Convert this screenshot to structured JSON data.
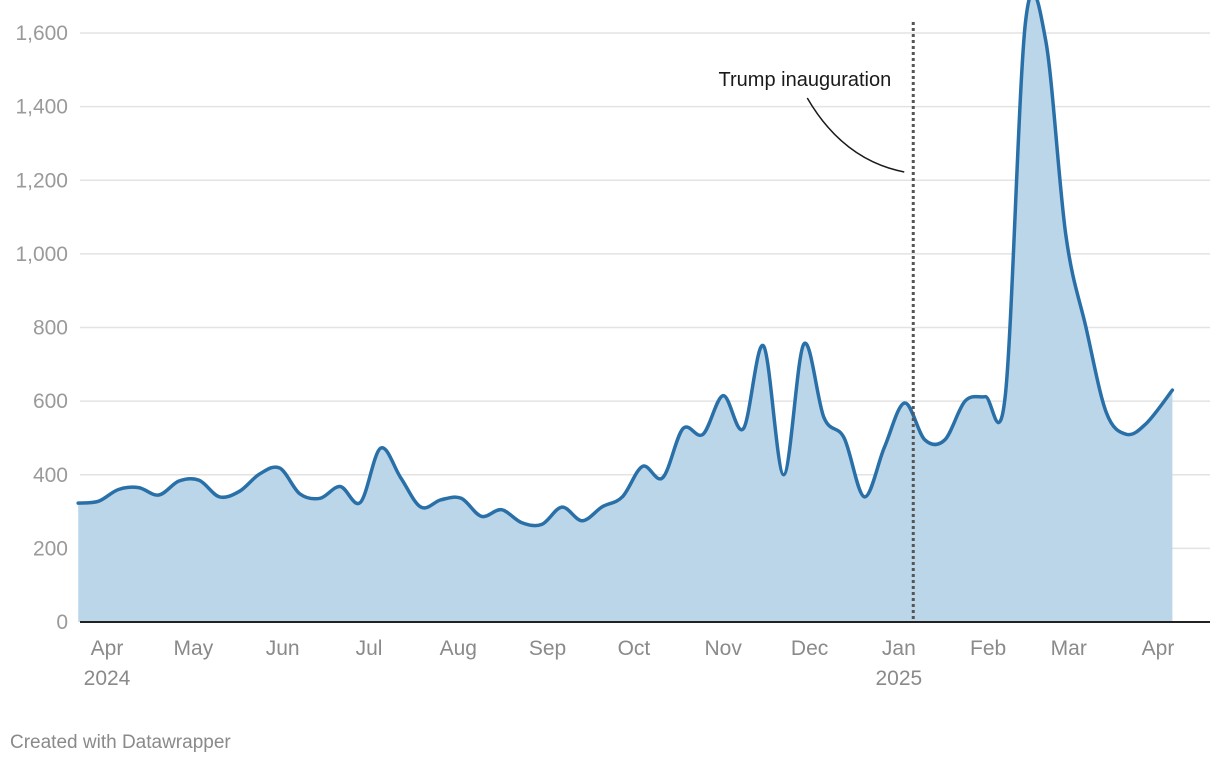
{
  "chart_data": {
    "type": "area",
    "title": "",
    "xlabel": "",
    "ylabel": "",
    "ylim": [
      0,
      1600
    ],
    "yticks": [
      0,
      200,
      400,
      600,
      800,
      1000,
      1200,
      1400,
      1600
    ],
    "ytick_labels": [
      "0",
      "200",
      "400",
      "600",
      "800",
      "1,000",
      "1,200",
      "1,400",
      "1,600"
    ],
    "grid": true,
    "legend": "none",
    "line_color": "#2a70a8",
    "fill_color": "#bcd6e9",
    "x_range": [
      "2024-04-01",
      "2025-04-30"
    ],
    "x_tick_labels": [
      {
        "month": "Apr",
        "year": "2024",
        "date": "2024-04-15"
      },
      {
        "month": "May",
        "year": "",
        "date": "2024-05-15"
      },
      {
        "month": "Jun",
        "year": "",
        "date": "2024-06-15"
      },
      {
        "month": "Jul",
        "year": "",
        "date": "2024-07-15"
      },
      {
        "month": "Aug",
        "year": "",
        "date": "2024-08-15"
      },
      {
        "month": "Sep",
        "year": "",
        "date": "2024-09-15"
      },
      {
        "month": "Oct",
        "year": "",
        "date": "2024-10-15"
      },
      {
        "month": "Nov",
        "year": "",
        "date": "2024-11-15"
      },
      {
        "month": "Dec",
        "year": "",
        "date": "2024-12-15"
      },
      {
        "month": "Jan",
        "year": "2025",
        "date": "2025-01-15"
      },
      {
        "month": "Feb",
        "year": "",
        "date": "2025-02-15"
      },
      {
        "month": "Mar",
        "year": "",
        "date": "2025-03-15"
      },
      {
        "month": "Apr",
        "year": "",
        "date": "2025-04-15"
      }
    ],
    "series": [
      {
        "points": [
          [
            "2024-04-05",
            323
          ],
          [
            "2024-04-12",
            328
          ],
          [
            "2024-04-19",
            360
          ],
          [
            "2024-04-26",
            365
          ],
          [
            "2024-05-03",
            345
          ],
          [
            "2024-05-10",
            383
          ],
          [
            "2024-05-17",
            385
          ],
          [
            "2024-05-24",
            340
          ],
          [
            "2024-05-31",
            355
          ],
          [
            "2024-06-07",
            402
          ],
          [
            "2024-06-14",
            418
          ],
          [
            "2024-06-21",
            348
          ],
          [
            "2024-06-28",
            336
          ],
          [
            "2024-07-05",
            368
          ],
          [
            "2024-07-12",
            325
          ],
          [
            "2024-07-19",
            472
          ],
          [
            "2024-07-26",
            392
          ],
          [
            "2024-08-02",
            312
          ],
          [
            "2024-08-09",
            332
          ],
          [
            "2024-08-16",
            336
          ],
          [
            "2024-08-23",
            287
          ],
          [
            "2024-08-30",
            305
          ],
          [
            "2024-09-06",
            270
          ],
          [
            "2024-09-13",
            265
          ],
          [
            "2024-09-20",
            312
          ],
          [
            "2024-09-27",
            275
          ],
          [
            "2024-10-04",
            313
          ],
          [
            "2024-10-11",
            340
          ],
          [
            "2024-10-18",
            423
          ],
          [
            "2024-10-25",
            392
          ],
          [
            "2024-11-01",
            525
          ],
          [
            "2024-11-08",
            510
          ],
          [
            "2024-11-15",
            615
          ],
          [
            "2024-11-22",
            525
          ],
          [
            "2024-11-29",
            750
          ],
          [
            "2024-12-06",
            400
          ],
          [
            "2024-12-13",
            755
          ],
          [
            "2024-12-20",
            555
          ],
          [
            "2024-12-27",
            500
          ],
          [
            "2025-01-03",
            340
          ],
          [
            "2025-01-10",
            475
          ],
          [
            "2025-01-17",
            595
          ],
          [
            "2025-01-24",
            495
          ],
          [
            "2025-01-31",
            495
          ],
          [
            "2025-02-07",
            600
          ],
          [
            "2025-02-14",
            612
          ],
          [
            "2025-02-21",
            618
          ],
          [
            "2025-02-28",
            1630
          ],
          [
            "2025-03-07",
            1580
          ],
          [
            "2025-03-14",
            1050
          ],
          [
            "2025-03-21",
            800
          ],
          [
            "2025-03-28",
            570
          ],
          [
            "2025-04-04",
            510
          ],
          [
            "2025-04-11",
            540
          ],
          [
            "2025-04-20",
            630
          ]
        ]
      }
    ],
    "annotations": [
      {
        "type": "vline",
        "date": "2025-01-20",
        "style": "dotted",
        "label": "Trump inauguration"
      }
    ]
  },
  "footer": {
    "credit": "Created with Datawrapper"
  }
}
